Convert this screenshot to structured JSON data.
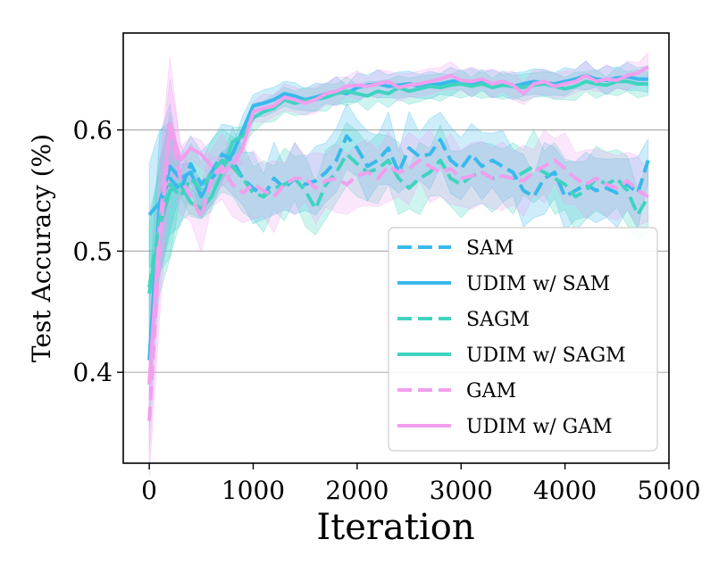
{
  "chart_data": {
    "type": "line",
    "title": "",
    "xlabel": "Iteration",
    "ylabel": "Test Accuracy (%)",
    "xlim": [
      -250,
      5000
    ],
    "ylim": [
      0.325,
      0.68
    ],
    "xticks": [
      0,
      1000,
      2000,
      3000,
      4000,
      5000
    ],
    "yticks": [
      0.4,
      0.5,
      0.6
    ],
    "grid": "horizontal",
    "legend_position": "lower-right",
    "x": [
      0,
      100,
      200,
      300,
      400,
      500,
      600,
      700,
      800,
      900,
      1000,
      1100,
      1200,
      1300,
      1400,
      1500,
      1600,
      1700,
      1800,
      1900,
      2000,
      2100,
      2200,
      2300,
      2400,
      2500,
      2600,
      2700,
      2800,
      2900,
      3000,
      3100,
      3200,
      3300,
      3400,
      3500,
      3600,
      3700,
      3800,
      3900,
      4000,
      4100,
      4200,
      4300,
      4400,
      4500,
      4600,
      4700,
      4800
    ],
    "series": [
      {
        "name": "SAM",
        "color": "#39b9ec",
        "style": "dashed",
        "values": [
          0.53,
          0.54,
          0.56,
          0.55,
          0.572,
          0.555,
          0.565,
          0.58,
          0.575,
          0.56,
          0.552,
          0.545,
          0.56,
          0.552,
          0.56,
          0.555,
          0.558,
          0.565,
          0.575,
          0.595,
          0.585,
          0.57,
          0.575,
          0.585,
          0.565,
          0.585,
          0.578,
          0.58,
          0.592,
          0.575,
          0.568,
          0.58,
          0.57,
          0.575,
          0.57,
          0.565,
          0.55,
          0.545,
          0.56,
          0.565,
          0.545,
          0.55,
          0.555,
          0.55,
          0.552,
          0.548,
          0.555,
          0.548,
          0.575
        ],
        "band": 0.03
      },
      {
        "name": "UDIM w/ SAM",
        "color": "#39b9ec",
        "style": "solid",
        "values": [
          0.41,
          0.54,
          0.57,
          0.56,
          0.565,
          0.545,
          0.56,
          0.57,
          0.58,
          0.6,
          0.62,
          0.622,
          0.625,
          0.63,
          0.628,
          0.625,
          0.627,
          0.63,
          0.632,
          0.63,
          0.635,
          0.637,
          0.638,
          0.636,
          0.637,
          0.638,
          0.636,
          0.637,
          0.638,
          0.64,
          0.641,
          0.639,
          0.64,
          0.638,
          0.637,
          0.636,
          0.638,
          0.64,
          0.639,
          0.638,
          0.64,
          0.642,
          0.645,
          0.642,
          0.641,
          0.643,
          0.644,
          0.642,
          0.642
        ],
        "band": 0.012
      },
      {
        "name": "SAGM",
        "color": "#40d4c0",
        "style": "dashed",
        "values": [
          0.47,
          0.525,
          0.555,
          0.545,
          0.56,
          0.55,
          0.565,
          0.575,
          0.57,
          0.56,
          0.548,
          0.545,
          0.552,
          0.555,
          0.56,
          0.55,
          0.535,
          0.555,
          0.565,
          0.58,
          0.572,
          0.565,
          0.568,
          0.575,
          0.56,
          0.552,
          0.56,
          0.565,
          0.575,
          0.56,
          0.555,
          0.562,
          0.565,
          0.56,
          0.562,
          0.56,
          0.565,
          0.57,
          0.565,
          0.56,
          0.555,
          0.545,
          0.55,
          0.56,
          0.555,
          0.56,
          0.55,
          0.53,
          0.545
        ],
        "band": 0.03
      },
      {
        "name": "UDIM w/ SAGM",
        "color": "#40d4c0",
        "style": "solid",
        "values": [
          0.465,
          0.52,
          0.55,
          0.555,
          0.54,
          0.535,
          0.545,
          0.565,
          0.59,
          0.595,
          0.61,
          0.615,
          0.618,
          0.625,
          0.622,
          0.624,
          0.625,
          0.627,
          0.63,
          0.632,
          0.63,
          0.628,
          0.632,
          0.63,
          0.635,
          0.632,
          0.634,
          0.636,
          0.635,
          0.637,
          0.638,
          0.636,
          0.638,
          0.635,
          0.637,
          0.636,
          0.635,
          0.637,
          0.638,
          0.636,
          0.634,
          0.636,
          0.64,
          0.638,
          0.637,
          0.64,
          0.64,
          0.638,
          0.638
        ],
        "band": 0.012
      },
      {
        "name": "GAM",
        "color": "#f19fee",
        "style": "dashed",
        "values": [
          0.36,
          0.505,
          0.6,
          0.56,
          0.545,
          0.528,
          0.56,
          0.57,
          0.555,
          0.548,
          0.555,
          0.55,
          0.545,
          0.555,
          0.56,
          0.56,
          0.552,
          0.558,
          0.56,
          0.555,
          0.562,
          0.565,
          0.56,
          0.57,
          0.565,
          0.568,
          0.575,
          0.57,
          0.565,
          0.568,
          0.56,
          0.562,
          0.565,
          0.56,
          0.562,
          0.56,
          0.558,
          0.565,
          0.57,
          0.575,
          0.568,
          0.56,
          0.555,
          0.56,
          0.555,
          0.552,
          0.558,
          0.55,
          0.545
        ],
        "band": 0.03
      },
      {
        "name": "UDIM w/ GAM",
        "color": "#f19fee",
        "style": "solid",
        "values": [
          0.39,
          0.52,
          0.605,
          0.575,
          0.585,
          0.58,
          0.57,
          0.565,
          0.57,
          0.585,
          0.615,
          0.618,
          0.62,
          0.627,
          0.625,
          0.622,
          0.625,
          0.63,
          0.632,
          0.636,
          0.637,
          0.636,
          0.638,
          0.64,
          0.635,
          0.637,
          0.638,
          0.64,
          0.642,
          0.645,
          0.641,
          0.64,
          0.642,
          0.638,
          0.64,
          0.637,
          0.63,
          0.638,
          0.64,
          0.636,
          0.638,
          0.64,
          0.645,
          0.64,
          0.642,
          0.641,
          0.645,
          0.647,
          0.652
        ],
        "band": 0.012
      }
    ]
  }
}
